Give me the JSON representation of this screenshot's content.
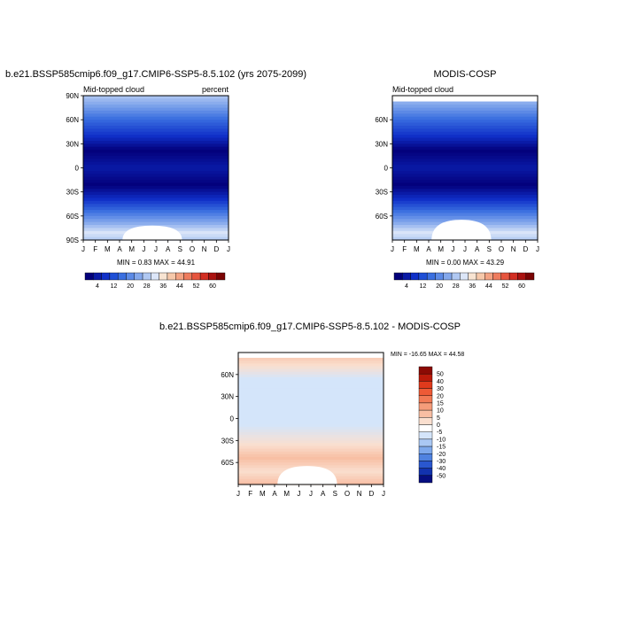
{
  "chart_data": [
    {
      "type": "heatmap",
      "title": "b.e21.BSSP585cmip6.f09_g17.CMIP6-SSP5-8.5.102 (yrs 2075-2099)",
      "left_label": "Mid-topped cloud",
      "right_label": "percent",
      "x_ticks": [
        "J",
        "F",
        "M",
        "A",
        "M",
        "J",
        "J",
        "A",
        "S",
        "O",
        "N",
        "D",
        "J"
      ],
      "y_ticks": [
        "90N",
        "60N",
        "30N",
        "0",
        "30S",
        "60S",
        "90S"
      ],
      "y_tick_values": [
        90,
        60,
        30,
        0,
        -30,
        -60,
        -90
      ],
      "ylim": [
        -90,
        90
      ],
      "stats_text": "MIN =   0.83 MAX =  44.91",
      "min": 0.83,
      "max": 44.91,
      "colorbar": {
        "labels": [
          "4",
          "12",
          "20",
          "28",
          "36",
          "44",
          "52",
          "60"
        ],
        "colors": [
          "#03007a",
          "#0a1aa6",
          "#1030c8",
          "#1e4fd6",
          "#3a6fe0",
          "#5c8ae6",
          "#84a8ec",
          "#b0c8f2",
          "#dce6f8",
          "#f8e4d2",
          "#f6c8aa",
          "#f3a383",
          "#ee7c5e",
          "#e6553e",
          "#d22e22",
          "#aa1210",
          "#7a0404"
        ]
      }
    },
    {
      "type": "heatmap",
      "title": "MODIS-COSP",
      "left_label": "Mid-topped cloud",
      "x_ticks": [
        "J",
        "F",
        "M",
        "A",
        "M",
        "J",
        "J",
        "A",
        "S",
        "O",
        "N",
        "D",
        "J"
      ],
      "y_ticks": [
        "60N",
        "30N",
        "0",
        "30S",
        "60S"
      ],
      "y_tick_values": [
        60,
        30,
        0,
        -30,
        -60
      ],
      "ylim": [
        -90,
        90
      ],
      "stats_text": "MIN =   0.00 MAX =  43.29",
      "min": 0.0,
      "max": 43.29,
      "colorbar": {
        "labels": [
          "4",
          "12",
          "20",
          "28",
          "36",
          "44",
          "52",
          "60"
        ],
        "colors": [
          "#03007a",
          "#0a1aa6",
          "#1030c8",
          "#1e4fd6",
          "#3a6fe0",
          "#5c8ae6",
          "#84a8ec",
          "#b0c8f2",
          "#dce6f8",
          "#f8e4d2",
          "#f6c8aa",
          "#f3a383",
          "#ee7c5e",
          "#e6553e",
          "#d22e22",
          "#aa1210",
          "#7a0404"
        ]
      }
    },
    {
      "type": "heatmap",
      "title": "b.e21.BSSP585cmip6.f09_g17.CMIP6-SSP5-8.5.102 - MODIS-COSP",
      "x_ticks": [
        "J",
        "F",
        "M",
        "A",
        "M",
        "J",
        "J",
        "A",
        "S",
        "O",
        "N",
        "D",
        "J"
      ],
      "y_ticks": [
        "60N",
        "30N",
        "0",
        "30S",
        "60S"
      ],
      "y_tick_values": [
        60,
        30,
        0,
        -30,
        -60
      ],
      "ylim": [
        -90,
        90
      ],
      "stats_text": "MIN = -16.65 MAX =  44.58",
      "min": -16.65,
      "max": 44.58,
      "colorbar": {
        "labels": [
          "50",
          "40",
          "30",
          "20",
          "15",
          "10",
          "5",
          "0",
          "-5",
          "-10",
          "-15",
          "-20",
          "-30",
          "-40",
          "-50"
        ],
        "colors": [
          "#8c0a04",
          "#bb1a0a",
          "#e03a1c",
          "#ee5a36",
          "#f27a55",
          "#f59c7a",
          "#f8bea3",
          "#fadfcf",
          "#ffffff",
          "#d4e5fa",
          "#aac8f4",
          "#7da8ec",
          "#4f82e0",
          "#2a57cf",
          "#1232ae",
          "#060e80"
        ]
      }
    }
  ]
}
